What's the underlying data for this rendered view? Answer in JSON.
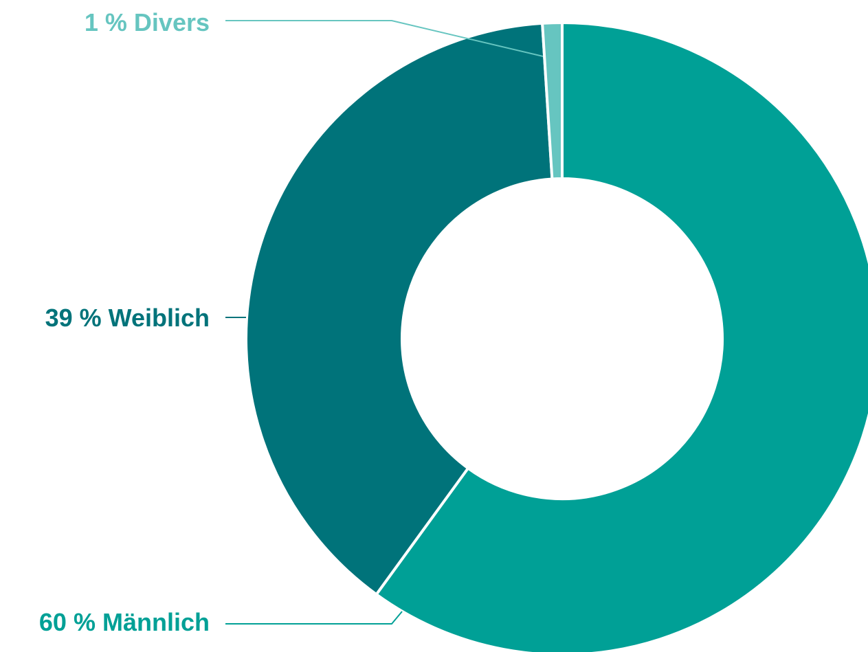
{
  "chart_data": {
    "type": "donut",
    "categories": [
      "Männlich",
      "Weiblich",
      "Divers"
    ],
    "values": [
      60,
      39,
      1
    ],
    "value_labels": [
      "60 %",
      "39 %",
      "1 %"
    ],
    "colors": [
      "#00a096",
      "#00737a",
      "#66c5c0"
    ]
  }
}
